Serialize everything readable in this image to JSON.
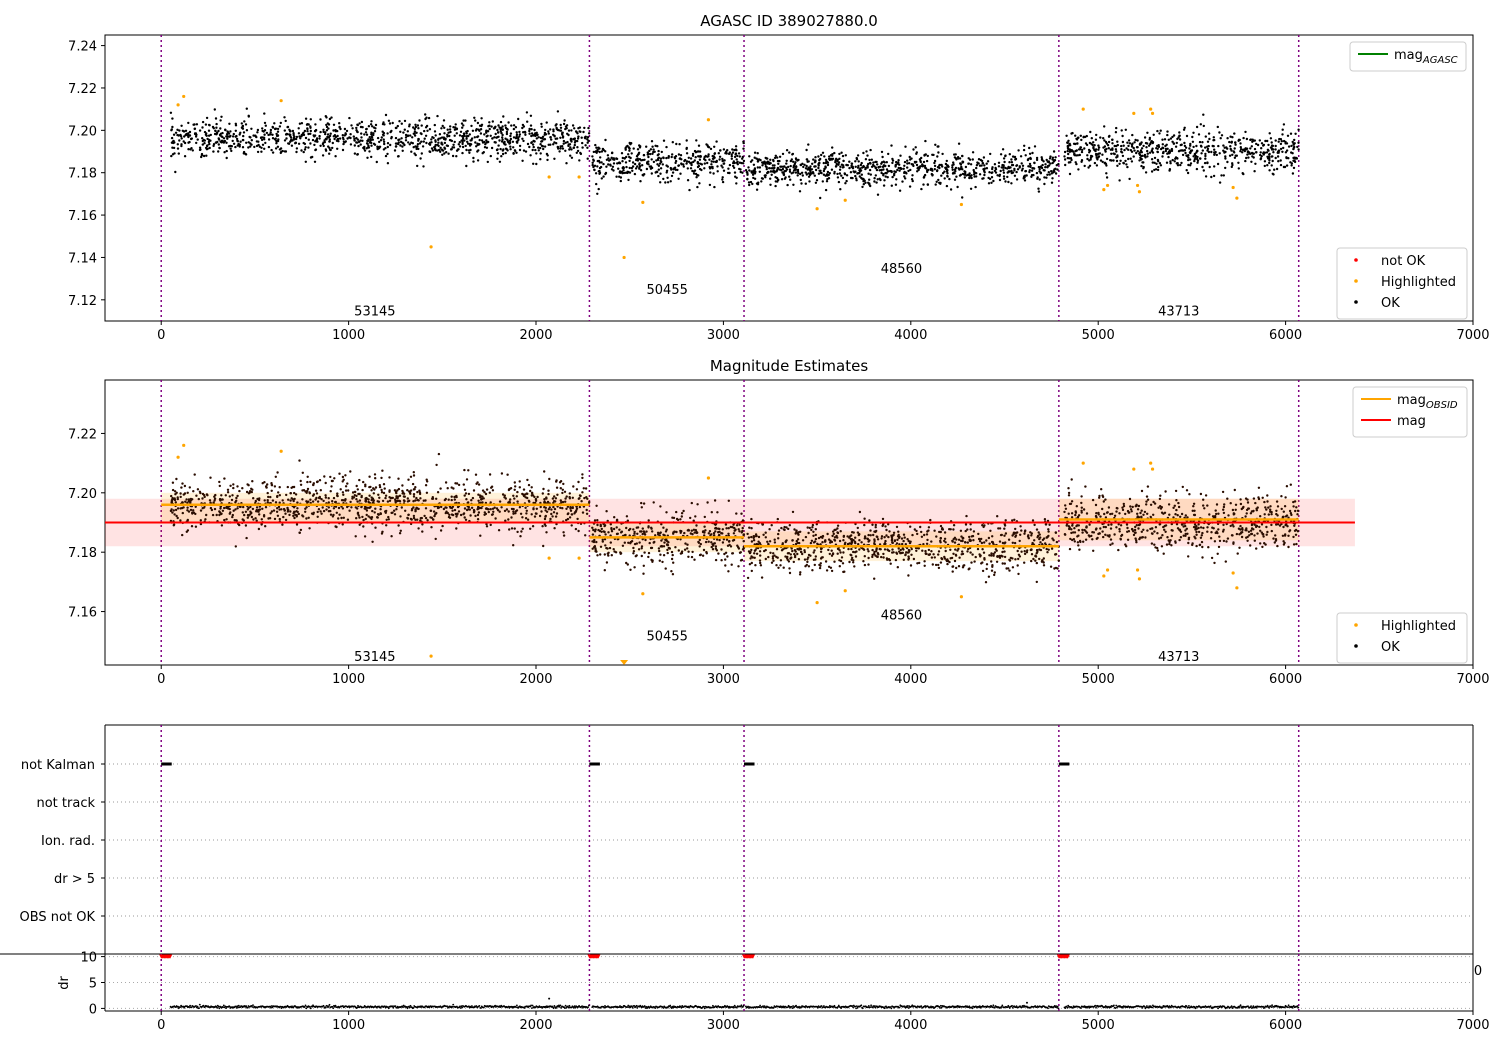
{
  "chart_data": [
    {
      "type": "scatter",
      "title": "AGASC ID 389027880.0",
      "xlim": [
        -300,
        7000
      ],
      "ylim": [
        7.11,
        7.245
      ],
      "xticks": [
        "0",
        "1000",
        "2000",
        "3000",
        "4000",
        "5000",
        "6000",
        "7000"
      ],
      "yticks": [
        "7.12",
        "7.14",
        "7.16",
        "7.18",
        "7.20",
        "7.22",
        "7.24"
      ],
      "obs_boundaries": [
        0,
        2285,
        3110,
        4790,
        6070
      ],
      "observations": [
        {
          "label": "53145",
          "x": 1140,
          "y": 7.115
        },
        {
          "label": "50455",
          "x": 2700,
          "y": 7.125
        },
        {
          "label": "48560",
          "x": 3950,
          "y": 7.135
        },
        {
          "label": "43713",
          "x": 5430,
          "y": 7.115
        }
      ],
      "segments": [
        {
          "x": [
            50,
            2285
          ],
          "center": 7.196,
          "spread": 0.006
        },
        {
          "x": [
            2300,
            3110
          ],
          "center": 7.185,
          "spread": 0.006
        },
        {
          "x": [
            3120,
            4790
          ],
          "center": 7.182,
          "spread": 0.0055
        },
        {
          "x": [
            4820,
            6070
          ],
          "center": 7.19,
          "spread": 0.0065
        }
      ],
      "highlighted_points": [
        [
          90,
          7.212
        ],
        [
          120,
          7.216
        ],
        [
          640,
          7.214
        ],
        [
          1440,
          7.145
        ],
        [
          2070,
          7.178
        ],
        [
          2230,
          7.178
        ],
        [
          2470,
          7.14
        ],
        [
          2570,
          7.166
        ],
        [
          2920,
          7.205
        ],
        [
          3500,
          7.163
        ],
        [
          3650,
          7.167
        ],
        [
          4270,
          7.165
        ],
        [
          4920,
          7.21
        ],
        [
          5030,
          7.172
        ],
        [
          5050,
          7.174
        ],
        [
          5190,
          7.208
        ],
        [
          5220,
          7.171
        ],
        [
          5210,
          7.174
        ],
        [
          5280,
          7.21
        ],
        [
          5290,
          7.208
        ],
        [
          5720,
          7.173
        ],
        [
          5740,
          7.168
        ]
      ],
      "legends": [
        {
          "label": "mag",
          "subscript": "AGASC",
          "color": "#008000"
        },
        {
          "label": "not OK",
          "color": "#ff0000"
        },
        {
          "label": "Highlighted",
          "color": "#ffa500"
        },
        {
          "label": "OK",
          "color": "#000000"
        }
      ]
    },
    {
      "type": "scatter",
      "title": "Magnitude Estimates",
      "xlim": [
        -300,
        7000
      ],
      "ylim": [
        7.142,
        7.238
      ],
      "xticks": [
        "0",
        "1000",
        "2000",
        "3000",
        "4000",
        "5000",
        "6000",
        "7000"
      ],
      "yticks": [
        "7.16",
        "7.18",
        "7.20",
        "7.22"
      ],
      "mag": 7.19,
      "mag_band": [
        7.182,
        7.198
      ],
      "mag_band_x": [
        -300,
        6370
      ],
      "mag_obsid": [
        {
          "x": [
            0,
            2285
          ],
          "y": 7.196
        },
        {
          "x": [
            2285,
            3110
          ],
          "y": 7.185
        },
        {
          "x": [
            3110,
            4790
          ],
          "y": 7.182
        },
        {
          "x": [
            4790,
            6070
          ],
          "y": 7.191
        }
      ],
      "obsid_band": [
        {
          "x": [
            0,
            2285
          ],
          "y": [
            7.19,
            7.2
          ]
        },
        {
          "x": [
            2285,
            3110
          ],
          "y": [
            7.18,
            7.19
          ]
        },
        {
          "x": [
            3110,
            4790
          ],
          "y": [
            7.177,
            7.187
          ]
        },
        {
          "x": [
            4790,
            6070
          ],
          "y": [
            7.184,
            7.198
          ]
        }
      ],
      "observations": [
        {
          "label": "53145",
          "x": 1140,
          "y": 7.145
        },
        {
          "label": "50455",
          "x": 2700,
          "y": 7.152
        },
        {
          "label": "48560",
          "x": 3950,
          "y": 7.159
        },
        {
          "label": "43713",
          "x": 5430,
          "y": 7.145
        }
      ],
      "legends": [
        {
          "label": "mag",
          "subscript": "OBSID",
          "color": "#ffa500"
        },
        {
          "label": "mag",
          "color": "#ff0000"
        },
        {
          "label": "Highlighted",
          "color": "#ffa500"
        },
        {
          "label": "OK",
          "color": "#000000"
        }
      ]
    },
    {
      "type": "scatter",
      "title": "",
      "categories": [
        "not Kalman",
        "not track",
        "Ion. rad.",
        "dr > 5",
        "OBS not OK"
      ],
      "flag_segments": {
        "not Kalman": [
          [
            0,
            50
          ],
          [
            2285,
            2335
          ],
          [
            3110,
            3160
          ],
          [
            4790,
            4840
          ]
        ]
      },
      "xlim": [
        -300,
        7000
      ]
    },
    {
      "type": "scatter",
      "ylabel": "dr",
      "yticks": [
        "0",
        "5",
        "10"
      ],
      "ylim": [
        -0.5,
        10.5
      ],
      "xticks": [
        "0",
        "1000",
        "2000",
        "3000",
        "4000",
        "5000",
        "6000",
        "7000"
      ],
      "xlim": [
        -300,
        7000
      ],
      "red_markers_at_10": [
        [
          0,
          50
        ],
        [
          2285,
          2335
        ],
        [
          3110,
          3160
        ],
        [
          4790,
          4840
        ]
      ],
      "dr_typical": 0.3,
      "overflow_tick_label": "0"
    }
  ]
}
